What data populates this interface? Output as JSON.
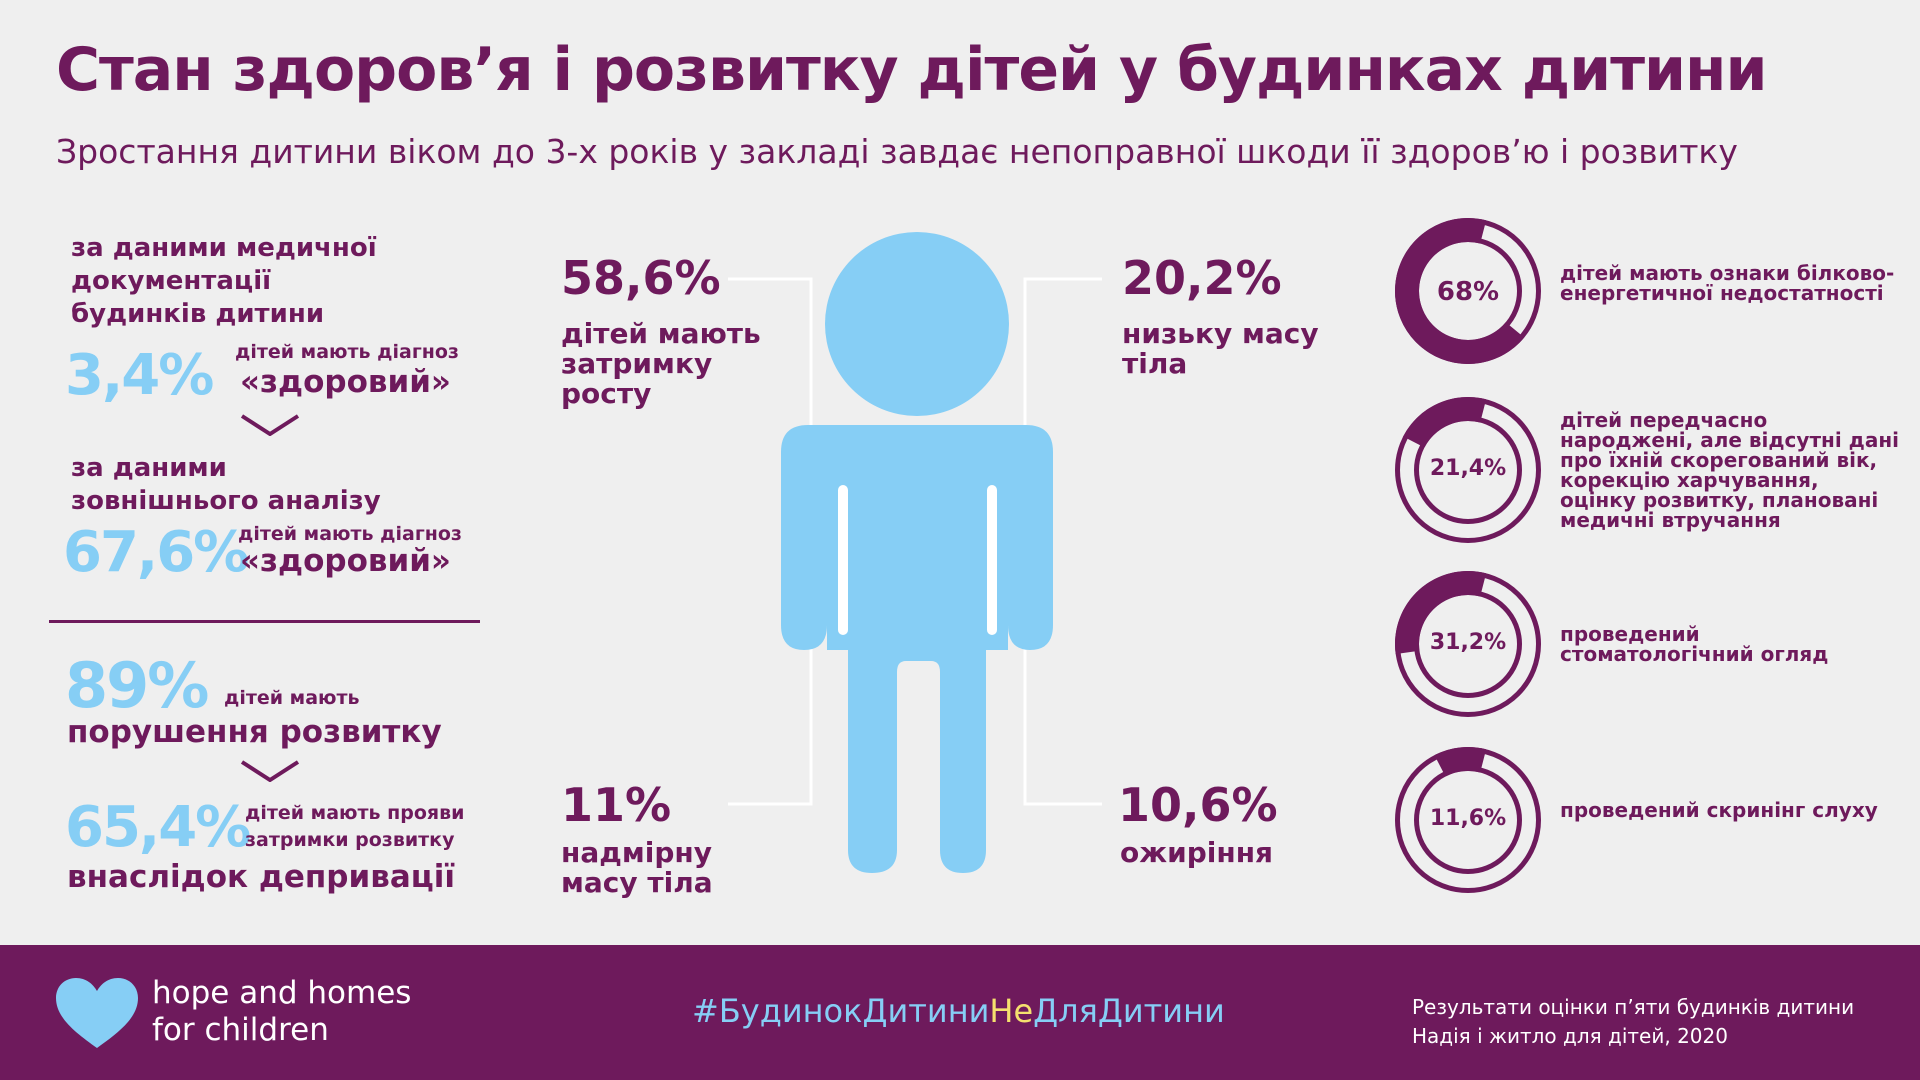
{
  "title": "Стан здоров’я і розвитку дітей у будинках дитини",
  "subtitle": "Зростання дитини віком до 3-х років у закладі завдає непоправної шкоди її здоров’ю і розвитку",
  "left": {
    "medical_label": "за даними медичної документації будинків дитини",
    "medical_pct": "3,4%",
    "medical_text": "дітей мають діагноз",
    "medical_quote": "«здоровий»",
    "external_label": "за даними зовнішнього аналізу",
    "external_pct": "67,6%",
    "external_text": "дітей мають діагноз",
    "external_quote": "«здоровий»",
    "dev_pct": "89%",
    "dev_text": "дітей мають",
    "dev_title": "порушення розвитку",
    "depr_pct": "65,4%",
    "depr_text1": "дітей мають прояви",
    "depr_text2": "затримки розвитку",
    "depr_title": "внаслідок депривації"
  },
  "figure": {
    "growth": {
      "pct": "58,6%",
      "label": "дітей мають затримку росту"
    },
    "low_weight": {
      "pct": "20,2%",
      "label": "низьку масу тіла"
    },
    "over_weight": {
      "pct": "11%",
      "label": "надмірну масу тіла"
    },
    "obesity": {
      "pct": "10,6%",
      "label": "ожиріння"
    }
  },
  "donuts": [
    {
      "pct": "68%",
      "value": 68,
      "label": "дітей мають ознаки білково-енергетичної недостатності"
    },
    {
      "pct": "21,4%",
      "value": 21.4,
      "label": "дітей передчасно народжені, але відсутні дані про їхній скорегований вік, корекцію харчування, оцінку розвитку, плановані медичні втручання"
    },
    {
      "pct": "31,2%",
      "value": 31.2,
      "label": "проведений стоматологічний огляд"
    },
    {
      "pct": "11,6%",
      "value": 11.6,
      "label": "проведений скринінг слуху"
    }
  ],
  "footer": {
    "logo_line1": "hope and homes",
    "logo_line2": "for children",
    "hashtag_a": "#БудинокДитини",
    "hashtag_b": "Не",
    "hashtag_c": "ДляДитини",
    "source1": "Результати оцінки п’яти будинків дитини",
    "source2": "Надія і житло для дітей, 2020"
  },
  "colors": {
    "purple": "#6e1a5c",
    "blue": "#86cef5",
    "yellow": "#f5e06e",
    "bg": "#efefef"
  }
}
